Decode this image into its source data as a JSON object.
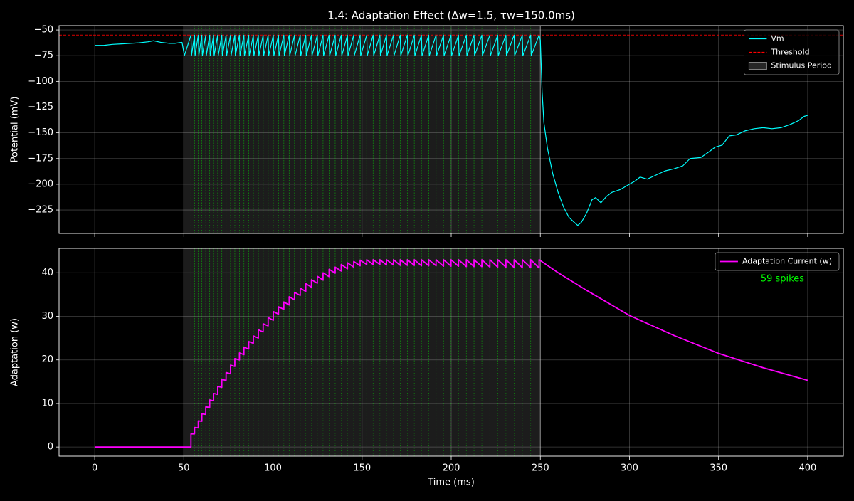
{
  "chart_data": [
    {
      "type": "line",
      "title": "1.4: Adaptation Effect (Δw=1.5, τw=150.0ms)",
      "ylabel": "Potential (mV)",
      "xlim": [
        -20,
        420
      ],
      "ylim": [
        -247.8,
        -45.8
      ],
      "xticks": [
        0,
        50,
        100,
        150,
        200,
        250,
        300,
        350,
        400
      ],
      "yticks": [
        {
          "value": -50,
          "label": "−50"
        },
        {
          "value": -75,
          "label": "−75"
        },
        {
          "value": -100,
          "label": "−100"
        },
        {
          "value": -125,
          "label": "−125"
        },
        {
          "value": -150,
          "label": "−150"
        },
        {
          "value": -175,
          "label": "−175"
        },
        {
          "value": -200,
          "label": "−200"
        },
        {
          "value": -225,
          "label": "−225"
        }
      ],
      "grid": true,
      "legend": "upper right",
      "series": [
        {
          "name": "Vm",
          "color": "#00ffff",
          "x": [
            0,
            5,
            10,
            15,
            20,
            25,
            30,
            33,
            37,
            42,
            45,
            49,
            50.3,
            54.0,
            54.3,
            56.0,
            56.3,
            58.1,
            58.4,
            60.1,
            60.4,
            62.3,
            62.6,
            64.5,
            64.8,
            66.7,
            67.0,
            69.0,
            69.3,
            71.3,
            71.6,
            73.7,
            74.0,
            76.2,
            76.5,
            78.6,
            78.9,
            81.2,
            81.5,
            83.7,
            84.0,
            86.4,
            86.7,
            89.0,
            89.3,
            91.8,
            92.1,
            94.5,
            94.8,
            97.3,
            97.6,
            100.2,
            100.5,
            103.1,
            103.4,
            106.1,
            106.4,
            109.1,
            109.4,
            112.1,
            112.4,
            115.3,
            115.6,
            118.4,
            118.7,
            121.6,
            121.9,
            124.9,
            125.2,
            128.1,
            128.4,
            131.5,
            131.8,
            134.9,
            135.2,
            138.3,
            138.6,
            141.8,
            142.1,
            145.3,
            145.6,
            148.9,
            149.2,
            152.6,
            152.9,
            156.2,
            156.5,
            160.0,
            160.3,
            163.7,
            164.0,
            167.6,
            167.9,
            171.4,
            171.7,
            175.4,
            175.7,
            179.3,
            179.6,
            183.3,
            183.6,
            187.4,
            187.7,
            191.5,
            191.8,
            195.7,
            196.0,
            199.9,
            200.2,
            204.1,
            204.4,
            208.5,
            208.8,
            212.8,
            213.1,
            217.2,
            217.5,
            221.7,
            222.0,
            226.1,
            226.4,
            230.7,
            231.0,
            235.3,
            235.6,
            239.9,
            240.2,
            244.6,
            244.9,
            249.3,
            250,
            251,
            252,
            254,
            257,
            260,
            263,
            266,
            269,
            271,
            273,
            276,
            279,
            281,
            284,
            287,
            290,
            295,
            300,
            303,
            306,
            310,
            315,
            320,
            325,
            330,
            334,
            340,
            345,
            348,
            352,
            356,
            360,
            365,
            370,
            375,
            380,
            385,
            390,
            395,
            398,
            400
          ],
          "values": [
            -65,
            -65,
            -64,
            -63.5,
            -63,
            -62.5,
            -61.5,
            -60.5,
            -62,
            -63,
            -63,
            -62,
            -75,
            -55,
            -75,
            -55,
            -75,
            -55,
            -75,
            -55,
            -75,
            -55,
            -75,
            -55,
            -75,
            -55,
            -75,
            -55,
            -75,
            -55,
            -75,
            -55,
            -75,
            -55,
            -75,
            -55,
            -75,
            -55,
            -75,
            -55,
            -75,
            -55,
            -75,
            -55,
            -75,
            -55,
            -75,
            -55,
            -75,
            -55,
            -75,
            -55,
            -75,
            -55,
            -75,
            -55,
            -75,
            -55,
            -75,
            -55,
            -75,
            -55,
            -75,
            -55,
            -75,
            -55,
            -75,
            -55,
            -75,
            -55,
            -75,
            -55,
            -75,
            -55,
            -75,
            -55,
            -75,
            -55,
            -75,
            -55,
            -75,
            -55,
            -75,
            -55,
            -75,
            -55,
            -75,
            -55,
            -75,
            -55,
            -75,
            -55,
            -75,
            -55,
            -75,
            -55,
            -75,
            -55,
            -75,
            -55,
            -75,
            -55,
            -75,
            -55,
            -75,
            -55,
            -75,
            -55,
            -75,
            -55,
            -75,
            -55,
            -75,
            -55,
            -75,
            -55,
            -75,
            -55,
            -75,
            -55,
            -75,
            -55,
            -75,
            -55,
            -75,
            -55,
            -75,
            -55,
            -75,
            -55,
            -60,
            -110,
            -140,
            -165,
            -190,
            -208,
            -222,
            -232,
            -237,
            -240,
            -237,
            -228,
            -215,
            -213,
            -218,
            -212,
            -208,
            -205,
            -200,
            -197,
            -193,
            -195,
            -191,
            -187,
            -185,
            -182,
            -175,
            -174,
            -168,
            -164,
            -162,
            -153,
            -152,
            -148,
            -146,
            -145,
            -146,
            -145,
            -142,
            -138,
            -134,
            -133
          ]
        }
      ],
      "threshold": {
        "name": "Threshold",
        "value": -55,
        "color": "#ff0000"
      },
      "stimulus": {
        "name": "Stimulus Period",
        "range": [
          50,
          250
        ],
        "color": "#808080"
      },
      "spike_color": "#00ff00",
      "spike_times": [
        54.0,
        56.0,
        58.1,
        60.1,
        62.3,
        64.5,
        66.7,
        69.0,
        71.3,
        73.7,
        76.2,
        78.6,
        81.2,
        83.7,
        86.4,
        89.0,
        91.8,
        94.5,
        97.3,
        100.2,
        103.1,
        106.1,
        109.1,
        112.1,
        115.3,
        118.4,
        121.6,
        124.9,
        128.1,
        131.5,
        134.9,
        138.3,
        141.8,
        145.3,
        148.9,
        152.6,
        156.2,
        160.0,
        163.7,
        167.6,
        171.4,
        175.4,
        179.3,
        183.3,
        187.4,
        191.5,
        195.7,
        199.9,
        204.1,
        208.5,
        212.8,
        217.2,
        221.7,
        226.1,
        230.7,
        235.3,
        239.9,
        244.6,
        249.3
      ]
    },
    {
      "type": "line",
      "xlabel": "Time (ms)",
      "ylabel": "Adaptation (w)",
      "xlim": [
        -20,
        420
      ],
      "ylim": [
        -2.1,
        45.6
      ],
      "xticks": [
        0,
        50,
        100,
        150,
        200,
        250,
        300,
        350,
        400
      ],
      "yticks": [
        0,
        10,
        20,
        30,
        40
      ],
      "grid": true,
      "legend": "upper right",
      "annotation": {
        "text": "59 spikes",
        "color": "#00ff00"
      },
      "series": [
        {
          "name": "Adaptation Current (w)",
          "color": "#ff00ff",
          "x": [
            0,
            50,
            54.0,
            54.0,
            56.0,
            56.0,
            58.1,
            58.1,
            60.1,
            60.1,
            62.3,
            62.3,
            64.5,
            64.5,
            66.7,
            66.7,
            69.0,
            69.0,
            71.3,
            71.3,
            73.7,
            73.7,
            76.2,
            76.2,
            78.6,
            78.6,
            81.2,
            81.2,
            83.7,
            83.7,
            86.4,
            86.4,
            89.0,
            89.0,
            91.8,
            91.8,
            94.5,
            94.5,
            97.3,
            97.3,
            100.2,
            100.2,
            103.1,
            103.1,
            106.1,
            106.1,
            109.1,
            109.1,
            112.1,
            112.1,
            115.3,
            115.3,
            118.4,
            118.4,
            121.6,
            121.6,
            124.9,
            124.9,
            128.1,
            128.1,
            131.5,
            131.5,
            134.9,
            134.9,
            138.3,
            138.3,
            141.8,
            141.8,
            145.3,
            145.3,
            148.9,
            148.9,
            152.6,
            152.6,
            156.2,
            156.2,
            160.0,
            160.0,
            163.7,
            163.7,
            167.6,
            167.6,
            171.4,
            171.4,
            175.4,
            175.4,
            179.3,
            179.3,
            183.3,
            183.3,
            187.4,
            187.4,
            191.5,
            191.5,
            195.7,
            195.7,
            199.9,
            199.9,
            204.1,
            204.1,
            208.5,
            208.5,
            212.8,
            212.8,
            217.2,
            217.2,
            221.7,
            221.7,
            226.1,
            226.1,
            230.7,
            230.7,
            235.3,
            235.3,
            239.9,
            239.9,
            244.6,
            244.6,
            249.3,
            249.3,
            250,
            260,
            275,
            300,
            325,
            350,
            375,
            400
          ],
          "values": [
            0,
            0,
            0,
            3.0,
            3.0,
            4.5,
            4.4,
            6.0,
            5.9,
            7.6,
            7.5,
            9.2,
            9.1,
            10.8,
            10.6,
            12.3,
            12.1,
            13.9,
            13.7,
            15.5,
            15.3,
            17.1,
            16.8,
            18.8,
            18.5,
            20.3,
            20.0,
            21.6,
            21.2,
            22.9,
            22.5,
            24.2,
            23.8,
            25.5,
            25.0,
            26.9,
            26.4,
            28.3,
            27.8,
            29.7,
            29.1,
            31.1,
            30.5,
            32.2,
            31.6,
            33.3,
            32.6,
            34.5,
            33.8,
            35.5,
            34.8,
            36.5,
            35.7,
            37.5,
            36.7,
            38.4,
            37.6,
            39.2,
            38.3,
            40.0,
            39.1,
            40.8,
            39.9,
            41.3,
            40.4,
            41.9,
            40.9,
            42.3,
            41.3,
            42.6,
            41.6,
            42.9,
            41.9,
            43.0,
            41.9,
            43.0,
            41.9,
            43.0,
            41.8,
            43.0,
            41.8,
            43.0,
            41.7,
            43.0,
            41.7,
            43.0,
            41.7,
            43.0,
            41.6,
            43.0,
            41.6,
            43.0,
            41.6,
            43.0,
            41.5,
            43.0,
            41.5,
            43.0,
            41.5,
            43.0,
            41.4,
            43.0,
            41.4,
            43.0,
            41.4,
            43.0,
            41.3,
            43.0,
            41.3,
            43.0,
            41.3,
            43.0,
            41.2,
            43.0,
            41.2,
            43.0,
            41.2,
            43.0,
            41.1,
            43.0,
            42.8,
            40.0,
            36.2,
            30.2,
            25.6,
            21.5,
            18.2,
            15.3
          ]
        }
      ]
    }
  ]
}
